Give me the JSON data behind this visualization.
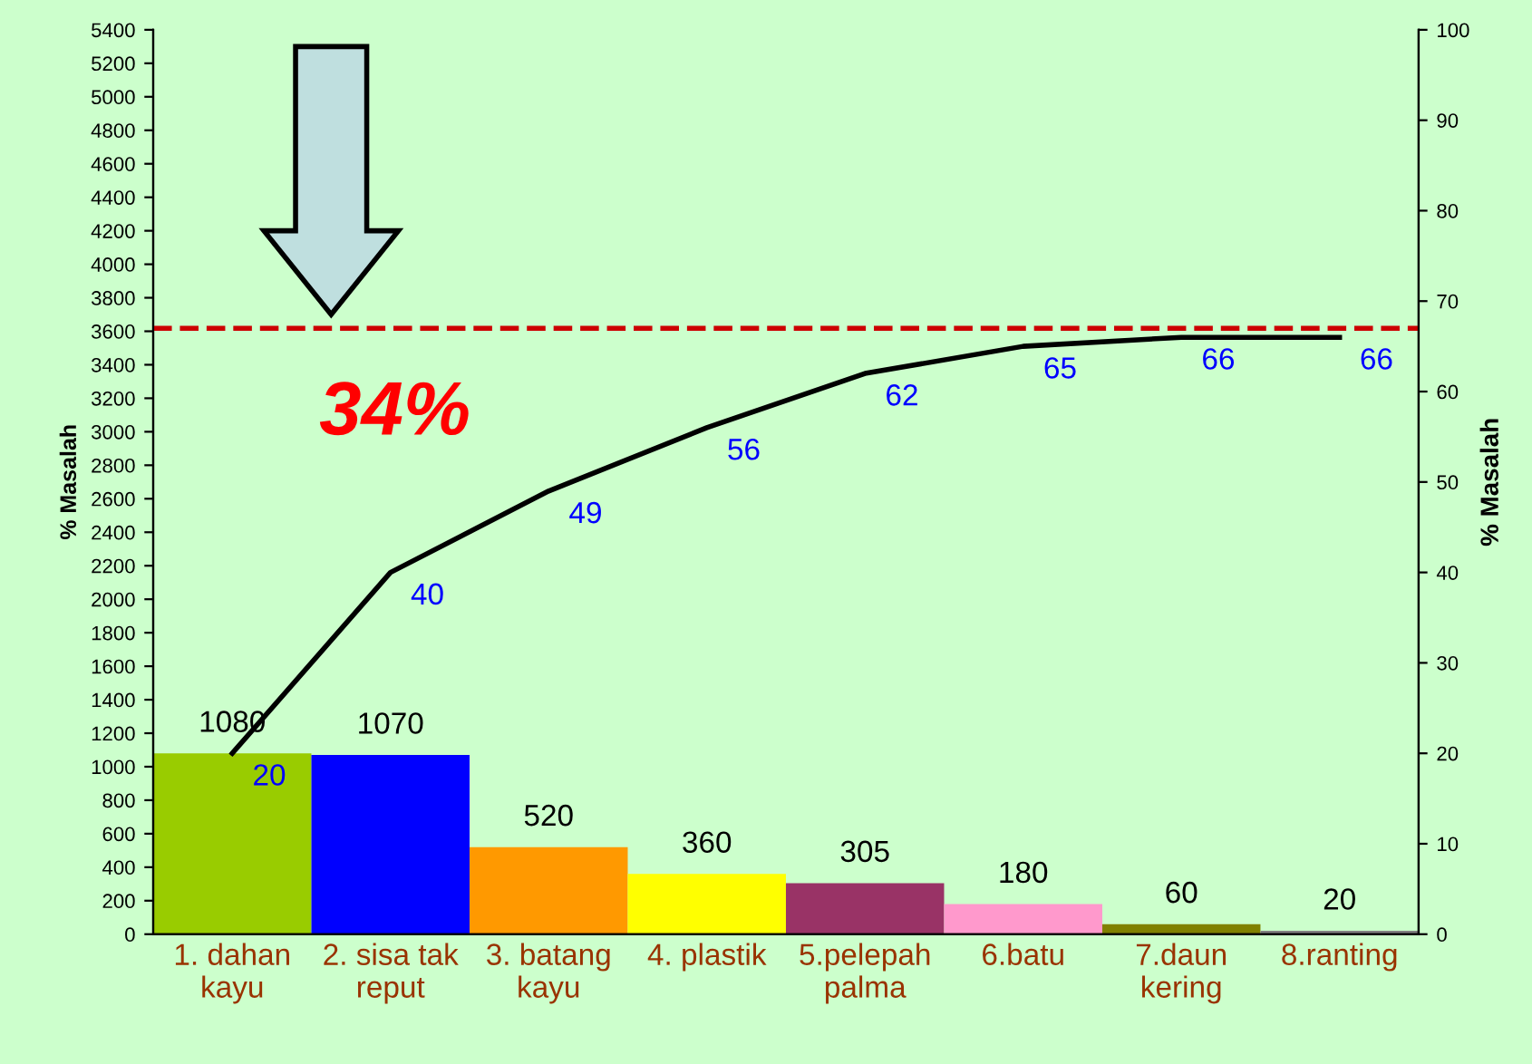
{
  "chart_data": {
    "type": "bar",
    "categories": [
      "1. dahan\nkayu",
      "2. sisa tak\nreput",
      "3. batang\nkayu",
      "4. plastik",
      "5.pelepah\npalma",
      "6.batu",
      "7.daun\nkering",
      "8.ranting"
    ],
    "series": [
      {
        "colors": [
          "#99cc00",
          "#0000ff",
          "#ff9900",
          "#ffff00",
          "#993366",
          "#ff99cc",
          "#808000",
          "#808080"
        ],
        "values": [
          1080,
          1070,
          520,
          360,
          305,
          180,
          60,
          20
        ]
      },
      {
        "type": "line",
        "axis": "y2",
        "color": "#000000",
        "values": [
          20,
          40,
          49,
          56,
          62,
          65,
          66,
          66
        ]
      }
    ],
    "ylabel": "% Masalah",
    "y2label": "% Masalah",
    "ylim": [
      0,
      5400
    ],
    "yticks": [
      0,
      200,
      400,
      600,
      800,
      1000,
      1200,
      1400,
      1600,
      1800,
      2000,
      2200,
      2400,
      2600,
      2800,
      3000,
      3200,
      3400,
      3600,
      3800,
      4000,
      4200,
      4400,
      4600,
      4800,
      5000,
      5200,
      5400
    ],
    "y2lim": [
      0,
      100
    ],
    "y2ticks": [
      0,
      10,
      20,
      30,
      40,
      50,
      60,
      70,
      80,
      90,
      100
    ],
    "ref_lines": [
      {
        "axis": "y2",
        "value": 67,
        "color": "#cc0000",
        "line_style": "dashed"
      }
    ],
    "annotations": [
      "34%"
    ],
    "data_labels": true,
    "grid": false,
    "marker": "none"
  }
}
